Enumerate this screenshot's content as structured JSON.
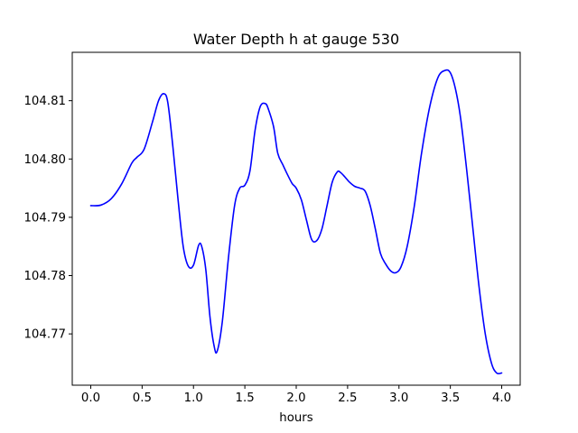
{
  "chart_data": {
    "type": "line",
    "title": "Water Depth h at gauge 530",
    "xlabel": "hours",
    "ylabel": "",
    "xlim": [
      -0.18,
      4.18
    ],
    "ylim": [
      104.7612,
      104.8183
    ],
    "xticks": [
      0.0,
      0.5,
      1.0,
      1.5,
      2.0,
      2.5,
      3.0,
      3.5,
      4.0
    ],
    "xtick_labels": [
      "0.0",
      "0.5",
      "1.0",
      "1.5",
      "2.0",
      "2.5",
      "3.0",
      "3.5",
      "4.0"
    ],
    "yticks": [
      104.77,
      104.78,
      104.79,
      104.8,
      104.81
    ],
    "ytick_labels": [
      "104.77",
      "104.78",
      "104.79",
      "104.80",
      "104.81"
    ],
    "grid": false,
    "series": [
      {
        "color": "#0000ff",
        "x": [
          0.0,
          0.1,
          0.2,
          0.3,
          0.4,
          0.45,
          0.52,
          0.6,
          0.66,
          0.71,
          0.75,
          0.8,
          0.85,
          0.9,
          0.95,
          1.0,
          1.05,
          1.08,
          1.12,
          1.16,
          1.2,
          1.23,
          1.28,
          1.34,
          1.4,
          1.45,
          1.5,
          1.55,
          1.6,
          1.65,
          1.7,
          1.73,
          1.78,
          1.82,
          1.87,
          1.91,
          1.96,
          2.0,
          2.05,
          2.1,
          2.15,
          2.2,
          2.25,
          2.3,
          2.35,
          2.4,
          2.43,
          2.47,
          2.52,
          2.57,
          2.62,
          2.67,
          2.72,
          2.77,
          2.82,
          2.87,
          2.92,
          2.97,
          3.02,
          3.08,
          3.15,
          3.22,
          3.3,
          3.38,
          3.45,
          3.5,
          3.55,
          3.6,
          3.66,
          3.72,
          3.78,
          3.84,
          3.9,
          3.95,
          4.0
        ],
        "values": [
          104.792,
          104.7921,
          104.7932,
          104.7957,
          104.7993,
          104.8003,
          104.8017,
          104.8063,
          104.81,
          104.8112,
          104.8097,
          104.802,
          104.793,
          104.785,
          104.7816,
          104.7818,
          104.7852,
          104.785,
          104.781,
          104.773,
          104.768,
          104.767,
          104.772,
          104.783,
          104.792,
          104.795,
          104.7955,
          104.798,
          104.805,
          104.809,
          104.8095,
          104.8085,
          104.8055,
          104.801,
          104.799,
          104.7975,
          104.7958,
          104.795,
          104.793,
          104.7895,
          104.7862,
          104.786,
          104.788,
          104.792,
          104.796,
          104.7978,
          104.7977,
          104.797,
          104.796,
          104.7953,
          104.795,
          104.7945,
          104.792,
          104.788,
          104.7838,
          104.782,
          104.7808,
          104.7805,
          104.7815,
          104.785,
          104.792,
          104.801,
          104.809,
          104.814,
          104.8152,
          104.8148,
          104.812,
          104.807,
          104.798,
          104.788,
          104.778,
          104.77,
          104.765,
          104.7633,
          104.7633
        ]
      }
    ]
  }
}
